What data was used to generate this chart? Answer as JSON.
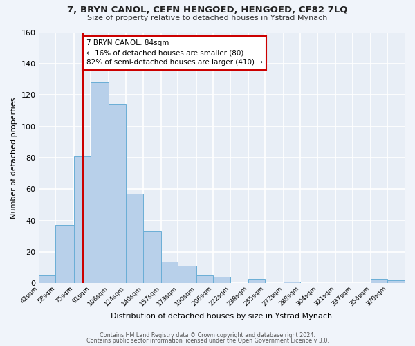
{
  "title": "7, BRYN CANOL, CEFN HENGOED, HENGOED, CF82 7LQ",
  "subtitle": "Size of property relative to detached houses in Ystrad Mynach",
  "xlabel": "Distribution of detached houses by size in Ystrad Mynach",
  "ylabel": "Number of detached properties",
  "bar_labels": [
    "42sqm",
    "58sqm",
    "75sqm",
    "91sqm",
    "108sqm",
    "124sqm",
    "140sqm",
    "157sqm",
    "173sqm",
    "190sqm",
    "206sqm",
    "222sqm",
    "239sqm",
    "255sqm",
    "272sqm",
    "288sqm",
    "304sqm",
    "321sqm",
    "337sqm",
    "354sqm",
    "370sqm"
  ],
  "bar_values": [
    5,
    37,
    81,
    128,
    114,
    57,
    33,
    14,
    11,
    5,
    4,
    0,
    3,
    0,
    1,
    0,
    0,
    0,
    0,
    3,
    2
  ],
  "bar_color": "#b8d0ea",
  "bar_edge_color": "#6aaed6",
  "bg_color": "#e8eef6",
  "grid_color": "#ffffff",
  "fig_bg_color": "#f0f4fa",
  "ylim": [
    0,
    160
  ],
  "yticks": [
    0,
    20,
    40,
    60,
    80,
    100,
    120,
    140,
    160
  ],
  "property_line_color": "#cc0000",
  "annotation_title": "7 BRYN CANOL: 84sqm",
  "annotation_line1": "← 16% of detached houses are smaller (80)",
  "annotation_line2": "82% of semi-detached houses are larger (410) →",
  "annotation_box_color": "#ffffff",
  "annotation_box_edge": "#cc0000",
  "footer1": "Contains HM Land Registry data © Crown copyright and database right 2024.",
  "footer2": "Contains public sector information licensed under the Open Government Licence v 3.0.",
  "bin_edges": [
    42,
    58,
    75,
    91,
    108,
    124,
    140,
    157,
    173,
    190,
    206,
    222,
    239,
    255,
    272,
    288,
    304,
    321,
    337,
    354,
    370,
    386
  ]
}
